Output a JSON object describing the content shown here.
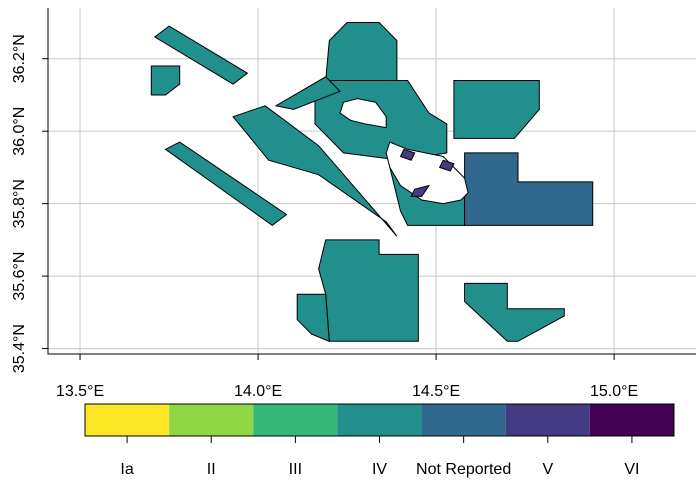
{
  "map": {
    "x_axis": {
      "ticks": [
        13.5,
        14.0,
        14.5,
        15.0
      ],
      "labels": [
        "13.5°E",
        "14.0°E",
        "14.5°E",
        "15.0°E"
      ]
    },
    "y_axis": {
      "ticks": [
        35.4,
        35.6,
        35.8,
        36.0,
        36.2
      ],
      "labels": [
        "35.4°N",
        "35.6°N",
        "35.8°N",
        "36.0°N",
        "36.2°N"
      ]
    },
    "grid": true,
    "colors": {
      "Ia": "#fde725",
      "II": "#8fd744",
      "III": "#35b779",
      "IV": "#21908d",
      "Not Reported": "#31688e",
      "V": "#443a83",
      "VI": "#440154",
      "land": "#ffffff"
    },
    "areas": [
      {
        "category": "IV",
        "poly": [
          [
            13.75,
            36.29
          ],
          [
            13.97,
            36.16
          ],
          [
            13.93,
            36.13
          ],
          [
            13.71,
            36.26
          ]
        ]
      },
      {
        "category": "IV",
        "poly": [
          [
            13.7,
            36.18
          ],
          [
            13.78,
            36.18
          ],
          [
            13.78,
            36.13
          ],
          [
            13.74,
            36.1
          ],
          [
            13.7,
            36.1
          ]
        ]
      },
      {
        "category": "IV",
        "poly": [
          [
            14.2,
            36.25
          ],
          [
            14.25,
            36.3
          ],
          [
            14.34,
            36.3
          ],
          [
            14.39,
            36.25
          ],
          [
            14.39,
            36.14
          ],
          [
            14.19,
            36.14
          ]
        ]
      },
      {
        "category": "IV",
        "poly": [
          [
            14.55,
            36.14
          ],
          [
            14.79,
            36.14
          ],
          [
            14.79,
            36.06
          ],
          [
            14.72,
            35.98
          ],
          [
            14.55,
            35.98
          ]
        ]
      },
      {
        "category": "IV",
        "poly": [
          [
            14.19,
            36.14
          ],
          [
            14.42,
            36.14
          ],
          [
            14.48,
            36.05
          ],
          [
            14.53,
            36.02
          ],
          [
            14.53,
            35.94
          ],
          [
            14.4,
            35.92
          ],
          [
            14.24,
            35.94
          ],
          [
            14.16,
            36.02
          ],
          [
            14.16,
            36.1
          ]
        ]
      },
      {
        "category": "IV",
        "poly": [
          [
            14.05,
            36.07
          ],
          [
            14.19,
            36.15
          ],
          [
            14.23,
            36.11
          ],
          [
            14.1,
            36.06
          ]
        ]
      },
      {
        "category": "IV",
        "poly": [
          [
            13.93,
            36.04
          ],
          [
            14.02,
            36.07
          ],
          [
            14.17,
            35.96
          ],
          [
            14.39,
            35.71
          ],
          [
            14.36,
            35.75
          ],
          [
            14.17,
            35.88
          ],
          [
            14.03,
            35.92
          ]
        ]
      },
      {
        "category": "IV",
        "poly": [
          [
            13.74,
            35.95
          ],
          [
            14.04,
            35.74
          ],
          [
            14.08,
            35.77
          ],
          [
            13.78,
            35.97
          ]
        ]
      },
      {
        "category": "IV",
        "poly": [
          [
            14.37,
            35.9
          ],
          [
            14.4,
            35.78
          ],
          [
            14.42,
            35.74
          ],
          [
            14.58,
            35.74
          ],
          [
            14.58,
            35.83
          ],
          [
            14.48,
            35.82
          ],
          [
            14.41,
            35.92
          ]
        ]
      },
      {
        "category": "IV",
        "poly": [
          [
            14.19,
            35.7
          ],
          [
            14.34,
            35.7
          ],
          [
            14.34,
            35.66
          ],
          [
            14.45,
            35.66
          ],
          [
            14.45,
            35.42
          ],
          [
            14.2,
            35.42
          ],
          [
            14.19,
            35.55
          ],
          [
            14.17,
            35.62
          ]
        ]
      },
      {
        "category": "IV",
        "poly": [
          [
            14.11,
            35.55
          ],
          [
            14.19,
            35.55
          ],
          [
            14.2,
            35.42
          ],
          [
            14.15,
            35.44
          ],
          [
            14.11,
            35.48
          ]
        ]
      },
      {
        "category": "IV",
        "poly": [
          [
            14.58,
            35.58
          ],
          [
            14.7,
            35.58
          ],
          [
            14.7,
            35.51
          ],
          [
            14.86,
            35.51
          ],
          [
            14.86,
            35.49
          ],
          [
            14.73,
            35.42
          ],
          [
            14.7,
            35.42
          ],
          [
            14.58,
            35.53
          ]
        ]
      },
      {
        "category": "Not Reported",
        "poly": [
          [
            14.58,
            35.94
          ],
          [
            14.73,
            35.94
          ],
          [
            14.73,
            35.86
          ],
          [
            14.94,
            35.86
          ],
          [
            14.94,
            35.74
          ],
          [
            14.58,
            35.74
          ]
        ]
      },
      {
        "category": "land",
        "poly": [
          [
            14.37,
            35.97
          ],
          [
            14.42,
            35.95
          ],
          [
            14.47,
            35.94
          ],
          [
            14.52,
            35.93
          ],
          [
            14.58,
            35.87
          ],
          [
            14.59,
            35.83
          ],
          [
            14.57,
            35.81
          ],
          [
            14.52,
            35.8
          ],
          [
            14.46,
            35.81
          ],
          [
            14.4,
            35.85
          ],
          [
            14.37,
            35.9
          ],
          [
            14.36,
            35.94
          ]
        ]
      },
      {
        "category": "land",
        "poly": [
          [
            14.24,
            36.08
          ],
          [
            14.28,
            36.09
          ],
          [
            14.33,
            36.08
          ],
          [
            14.36,
            36.04
          ],
          [
            14.36,
            36.01
          ],
          [
            14.3,
            36.02
          ],
          [
            14.26,
            36.03
          ],
          [
            14.23,
            36.05
          ]
        ]
      },
      {
        "category": "V",
        "poly": [
          [
            14.41,
            35.95
          ],
          [
            14.44,
            35.94
          ],
          [
            14.43,
            35.92
          ],
          [
            14.4,
            35.93
          ]
        ]
      },
      {
        "category": "V",
        "poly": [
          [
            14.52,
            35.92
          ],
          [
            14.55,
            35.91
          ],
          [
            14.54,
            35.89
          ],
          [
            14.51,
            35.9
          ]
        ]
      },
      {
        "category": "V",
        "poly": [
          [
            14.44,
            35.84
          ],
          [
            14.48,
            35.85
          ],
          [
            14.46,
            35.82
          ],
          [
            14.43,
            35.82
          ]
        ]
      }
    ]
  },
  "legend": {
    "categories": [
      "Ia",
      "II",
      "III",
      "IV",
      "Not Reported",
      "V",
      "VI"
    ]
  }
}
